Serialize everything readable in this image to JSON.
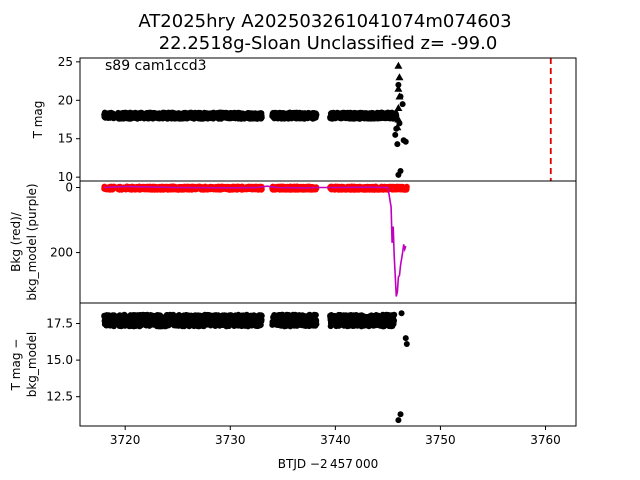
{
  "title_line1": "AT2025hry  A202503261041074m074603",
  "title_line2": "22.2518g-Sloan Unclassified z= -99.0",
  "chart_data": [
    {
      "type": "scatter",
      "panel": "top",
      "ylabel": "T mag",
      "ylim": [
        25.5,
        9.5
      ],
      "yticks": [
        10,
        15,
        20,
        25
      ],
      "annotation": "s89 cam1ccd3",
      "marker_line_x": 3760.5,
      "segments": [
        [
          3718.0,
          3719.0
        ],
        [
          3719.3,
          3733.0
        ],
        [
          3734.0,
          3738.2
        ],
        [
          3739.5,
          3745.8
        ]
      ],
      "baseline_mag": 18.0,
      "baseline_spread": 0.8,
      "outliers": [
        {
          "x": 3746.0,
          "y": 10.3
        },
        {
          "x": 3746.2,
          "y": 10.8
        },
        {
          "x": 3745.9,
          "y": 14.3
        },
        {
          "x": 3745.7,
          "y": 15.5
        },
        {
          "x": 3745.8,
          "y": 16.3
        },
        {
          "x": 3746.1,
          "y": 17.0
        },
        {
          "x": 3746.5,
          "y": 14.8
        },
        {
          "x": 3746.7,
          "y": 14.6
        },
        {
          "x": 3746.4,
          "y": 19.5
        },
        {
          "x": 3746.2,
          "y": 20.5
        },
        {
          "x": 3746.0,
          "y": 22.0
        }
      ],
      "limit_triangles": [
        {
          "x": 3745.9,
          "y": 16.5
        },
        {
          "x": 3746.0,
          "y": 17.5
        },
        {
          "x": 3746.0,
          "y": 19.0
        },
        {
          "x": 3746.1,
          "y": 20.5
        },
        {
          "x": 3746.0,
          "y": 21.5
        },
        {
          "x": 3746.1,
          "y": 23.0
        },
        {
          "x": 3746.0,
          "y": 24.5
        }
      ]
    },
    {
      "type": "line",
      "panel": "middle",
      "ylabel": "Bkg (red)/\nbkg_model (purple)",
      "ylim": [
        -20,
        355
      ],
      "yticks": [
        0,
        200
      ],
      "series": [
        {
          "color": "#ff0000",
          "segments": [
            [
              3718.0,
              3719.0
            ],
            [
              3719.3,
              3733.0
            ],
            [
              3734.0,
              3738.2
            ],
            [
              3739.5,
              3746.8
            ]
          ],
          "level": 2
        },
        {
          "color": "#bf00bf",
          "points": [
            [
              3718.0,
              0
            ],
            [
              3719.0,
              -2
            ],
            [
              3720.0,
              -3
            ],
            [
              3725.0,
              0
            ],
            [
              3730.0,
              1
            ],
            [
              3732.5,
              0
            ],
            [
              3733.5,
              -4
            ],
            [
              3734.5,
              0
            ],
            [
              3737.0,
              1
            ],
            [
              3738.5,
              0
            ],
            [
              3740.0,
              0
            ],
            [
              3743.0,
              -1
            ],
            [
              3745.0,
              0
            ],
            [
              3745.3,
              60
            ],
            [
              3745.4,
              170
            ],
            [
              3745.5,
              120
            ],
            [
              3745.6,
              210
            ],
            [
              3745.8,
              335
            ],
            [
              3745.9,
              320
            ],
            [
              3746.0,
              275
            ],
            [
              3746.1,
              270
            ],
            [
              3746.2,
              240
            ],
            [
              3746.4,
              200
            ],
            [
              3746.5,
              175
            ],
            [
              3746.6,
              190
            ],
            [
              3746.7,
              180
            ]
          ]
        }
      ]
    },
    {
      "type": "scatter",
      "panel": "bottom",
      "ylabel": "T mag −\nbkg_model",
      "ylim": [
        18.9,
        10.5
      ],
      "yticks": [
        12.5,
        15.0,
        17.5
      ],
      "segments": [
        [
          3718.0,
          3719.0
        ],
        [
          3719.3,
          3733.0
        ],
        [
          3734.0,
          3738.2
        ],
        [
          3739.5,
          3745.6
        ]
      ],
      "baseline_mag": 17.7,
      "baseline_spread": 0.8,
      "outliers": [
        {
          "x": 3746.0,
          "y": 10.9
        },
        {
          "x": 3746.2,
          "y": 11.3
        },
        {
          "x": 3746.8,
          "y": 16.1
        },
        {
          "x": 3746.7,
          "y": 16.5
        },
        {
          "x": 3746.3,
          "y": 18.2
        }
      ]
    }
  ],
  "x_axis": {
    "label": "BTJD −2 457 000",
    "xlim": [
      3715.7,
      3762.9
    ],
    "ticks": [
      3720,
      3730,
      3740,
      3750,
      3760
    ]
  }
}
